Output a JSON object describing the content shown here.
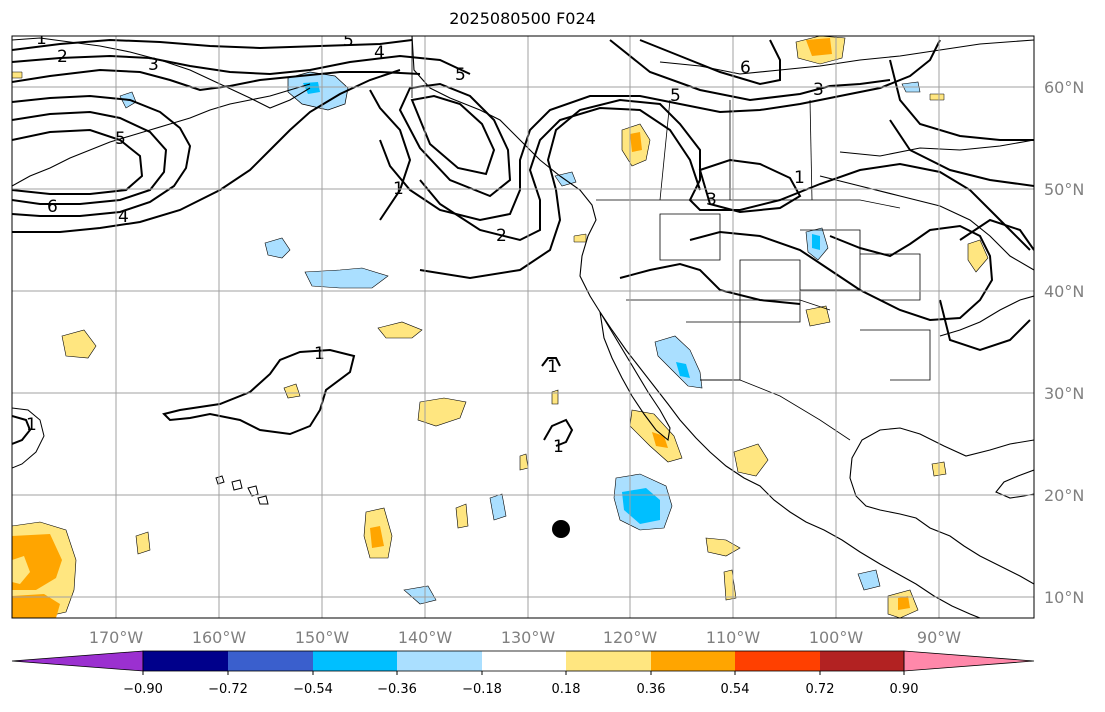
{
  "title": "2025080500 F024",
  "longitude_labels": [
    "170°W",
    "160°W",
    "150°W",
    "140°W",
    "130°W",
    "120°W",
    "110°W",
    "100°W",
    "90°W"
  ],
  "latitude_labels": [
    "60°N",
    "50°N",
    "40°N",
    "30°N",
    "20°N",
    "10°N"
  ],
  "colorbar": {
    "ticks": [
      "−0.90",
      "−0.72",
      "−0.54",
      "−0.36",
      "−0.18",
      "0.18",
      "0.36",
      "0.54",
      "0.72",
      "0.90"
    ],
    "colors": [
      "#9b30d0",
      "#00008b",
      "#3a5fcd",
      "#00bfff",
      "#aadfff",
      "#ffffff",
      "#ffe680",
      "#ffa500",
      "#ff4000",
      "#b22222",
      "#ff88aa"
    ]
  },
  "contour_labels": [
    {
      "id": "c1-nw",
      "text": "1"
    },
    {
      "id": "c2-nw",
      "text": "2"
    },
    {
      "id": "c3-nw",
      "text": "3"
    },
    {
      "id": "c5-top",
      "text": "5"
    },
    {
      "id": "c4-top",
      "text": "4"
    },
    {
      "id": "c5-gulf",
      "text": "5"
    },
    {
      "id": "c5-bering",
      "text": "5"
    },
    {
      "id": "c6-west",
      "text": "6"
    },
    {
      "id": "c4-west",
      "text": "4"
    },
    {
      "id": "c1-gulf",
      "text": "1"
    },
    {
      "id": "c2-gulf",
      "text": "2"
    },
    {
      "id": "c6-canada",
      "text": "6"
    },
    {
      "id": "c5-canada",
      "text": "5"
    },
    {
      "id": "c3-canada",
      "text": "3"
    },
    {
      "id": "c1-plains",
      "text": "1"
    },
    {
      "id": "c3-montana",
      "text": "3"
    },
    {
      "id": "c1-pacific",
      "text": "1"
    },
    {
      "id": "c1-cpac",
      "text": "1"
    },
    {
      "id": "c1-epac",
      "text": "1"
    },
    {
      "id": "c1-west-edge",
      "text": "1"
    }
  ],
  "marker": {
    "name": "storm-center-dot"
  }
}
